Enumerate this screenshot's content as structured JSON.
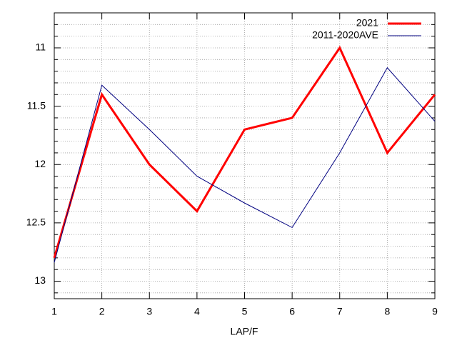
{
  "chart_data": {
    "type": "line",
    "x": [
      1,
      2,
      3,
      4,
      5,
      6,
      7,
      8,
      9
    ],
    "xlabel": "LAP/F",
    "xlim": [
      1,
      9
    ],
    "xticks": [
      1,
      2,
      3,
      4,
      5,
      6,
      7,
      8,
      9
    ],
    "ylim": [
      13.15,
      10.7
    ],
    "yticks": [
      11,
      11.5,
      12,
      12.5,
      13
    ],
    "yminorticks": [
      10.8,
      10.9,
      11.1,
      11.2,
      11.3,
      11.4,
      11.6,
      11.7,
      11.8,
      11.9,
      12.1,
      12.2,
      12.3,
      12.4,
      12.6,
      12.7,
      12.8,
      12.9,
      13.1
    ],
    "grid": true,
    "legend": "top-right",
    "series": [
      {
        "name": "2021",
        "color": "#ff0000",
        "width": 3,
        "values": [
          12.8,
          11.4,
          12.0,
          12.4,
          11.7,
          11.6,
          11.0,
          11.9,
          11.4
        ]
      },
      {
        "name": "2011-2020AVE",
        "color": "#000080",
        "width": 1,
        "values": [
          12.84,
          11.32,
          11.7,
          12.1,
          12.33,
          12.54,
          11.9,
          11.17,
          11.63
        ]
      }
    ]
  }
}
